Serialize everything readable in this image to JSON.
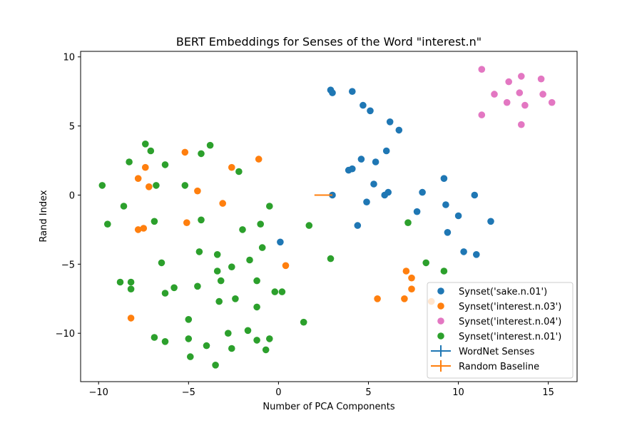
{
  "chart_data": {
    "type": "scatter",
    "title": "BERT Embeddings for Senses of the Word \"interest.n\"",
    "xlabel": "Number of PCA Components",
    "ylabel": "Rand Index",
    "xlim": [
      -11,
      16.6
    ],
    "ylim": [
      -13.5,
      10.4
    ],
    "xticks": [
      -10,
      -5,
      0,
      5,
      10,
      15
    ],
    "yticks": [
      -10,
      -5,
      0,
      5,
      10
    ],
    "grid": false,
    "legend_position": "lower-right",
    "series": [
      {
        "name": "Synset('sake.n.01')",
        "color": "#1f77b4",
        "points": [
          [
            2.9,
            7.6
          ],
          [
            3.0,
            7.4
          ],
          [
            4.1,
            7.5
          ],
          [
            4.7,
            6.5
          ],
          [
            5.1,
            6.1
          ],
          [
            6.2,
            5.3
          ],
          [
            6.7,
            4.7
          ],
          [
            6.0,
            3.2
          ],
          [
            5.4,
            2.4
          ],
          [
            4.6,
            2.6
          ],
          [
            3.9,
            1.8
          ],
          [
            4.1,
            1.9
          ],
          [
            5.3,
            0.8
          ],
          [
            6.1,
            0.2
          ],
          [
            5.9,
            0.0
          ],
          [
            3.0,
            0.0
          ],
          [
            4.9,
            -0.5
          ],
          [
            4.4,
            -2.2
          ],
          [
            7.7,
            -1.2
          ],
          [
            8.0,
            0.2
          ],
          [
            9.2,
            1.2
          ],
          [
            9.3,
            -0.7
          ],
          [
            10.0,
            -1.5
          ],
          [
            9.4,
            -2.7
          ],
          [
            10.3,
            -4.1
          ],
          [
            11.0,
            -4.3
          ],
          [
            10.9,
            0.0
          ],
          [
            11.8,
            -1.9
          ],
          [
            0.1,
            -3.4
          ]
        ]
      },
      {
        "name": "Synset('interest.n.03')",
        "color": "#ff7f0e",
        "points": [
          [
            -5.2,
            3.1
          ],
          [
            -1.1,
            2.6
          ],
          [
            -7.4,
            2.0
          ],
          [
            -2.6,
            2.0
          ],
          [
            -7.8,
            1.2
          ],
          [
            -7.2,
            0.6
          ],
          [
            -4.5,
            0.3
          ],
          [
            -3.1,
            -0.6
          ],
          [
            -5.1,
            -2.0
          ],
          [
            -7.8,
            -2.5
          ],
          [
            -7.5,
            -2.4
          ],
          [
            0.4,
            -5.1
          ],
          [
            7.1,
            -5.5
          ],
          [
            7.4,
            -6.0
          ],
          [
            7.4,
            -6.8
          ],
          [
            5.5,
            -7.5
          ],
          [
            7.0,
            -7.5
          ],
          [
            8.5,
            -7.7
          ],
          [
            -8.2,
            -8.9
          ]
        ]
      },
      {
        "name": "Synset('interest.n.04')",
        "color": "#e377c2",
        "points": [
          [
            11.3,
            9.1
          ],
          [
            12.0,
            7.3
          ],
          [
            12.8,
            8.2
          ],
          [
            13.5,
            8.6
          ],
          [
            14.6,
            8.4
          ],
          [
            13.4,
            7.4
          ],
          [
            14.7,
            7.3
          ],
          [
            12.7,
            6.7
          ],
          [
            13.7,
            6.5
          ],
          [
            15.2,
            6.7
          ],
          [
            11.3,
            5.8
          ],
          [
            13.5,
            5.1
          ]
        ]
      },
      {
        "name": "Synset('interest.n.01')",
        "color": "#2ca02c",
        "points": [
          [
            -7.4,
            3.7
          ],
          [
            -3.8,
            3.6
          ],
          [
            -7.1,
            3.2
          ],
          [
            -4.3,
            3.0
          ],
          [
            -8.3,
            2.4
          ],
          [
            -6.3,
            2.2
          ],
          [
            -2.2,
            1.7
          ],
          [
            -9.8,
            0.7
          ],
          [
            -6.8,
            0.7
          ],
          [
            -5.2,
            0.7
          ],
          [
            -8.6,
            -0.8
          ],
          [
            -0.5,
            -0.8
          ],
          [
            -9.5,
            -2.1
          ],
          [
            -6.9,
            -1.9
          ],
          [
            -4.3,
            -1.8
          ],
          [
            -1.0,
            -2.1
          ],
          [
            -2.0,
            -2.5
          ],
          [
            1.7,
            -2.2
          ],
          [
            -0.9,
            -3.8
          ],
          [
            -3.4,
            -4.3
          ],
          [
            -4.4,
            -4.1
          ],
          [
            -1.6,
            -4.7
          ],
          [
            -6.5,
            -4.9
          ],
          [
            -2.6,
            -5.2
          ],
          [
            -3.4,
            -5.5
          ],
          [
            2.9,
            -4.6
          ],
          [
            7.2,
            -2.0
          ],
          [
            8.2,
            -4.9
          ],
          [
            9.2,
            -5.5
          ],
          [
            -8.8,
            -6.3
          ],
          [
            -8.2,
            -6.3
          ],
          [
            -3.2,
            -6.2
          ],
          [
            -1.2,
            -6.2
          ],
          [
            -4.5,
            -6.6
          ],
          [
            -5.8,
            -6.7
          ],
          [
            -8.2,
            -6.8
          ],
          [
            -6.3,
            -7.1
          ],
          [
            -0.2,
            -7.0
          ],
          [
            0.2,
            -7.0
          ],
          [
            -2.4,
            -7.5
          ],
          [
            -3.3,
            -7.7
          ],
          [
            -1.2,
            -8.1
          ],
          [
            -5.0,
            -9.0
          ],
          [
            1.4,
            -9.2
          ],
          [
            -1.7,
            -9.8
          ],
          [
            -2.8,
            -10.0
          ],
          [
            -6.9,
            -10.3
          ],
          [
            -5.0,
            -10.4
          ],
          [
            -1.2,
            -10.5
          ],
          [
            -0.5,
            -10.4
          ],
          [
            -6.3,
            -10.6
          ],
          [
            -4.0,
            -10.9
          ],
          [
            -2.6,
            -11.1
          ],
          [
            -0.7,
            -11.2
          ],
          [
            -4.9,
            -11.7
          ],
          [
            -3.5,
            -12.3
          ]
        ]
      }
    ],
    "lines": [
      {
        "name": "WordNet Senses",
        "color": "#1f77b4"
      },
      {
        "name": "Random Baseline",
        "color": "#ff7f0e",
        "x": [
          2.0,
          3.0
        ],
        "y": [
          0.0,
          0.0
        ]
      }
    ]
  }
}
